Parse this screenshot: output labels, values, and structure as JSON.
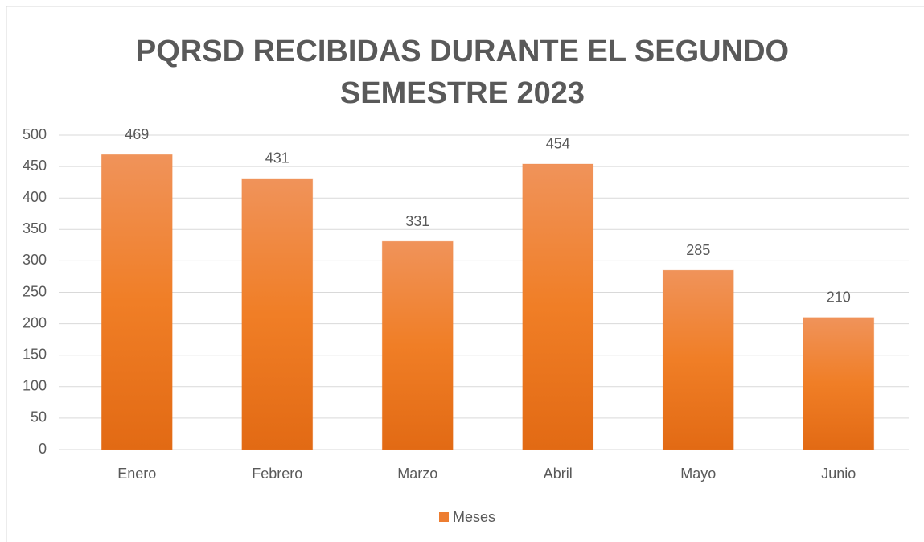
{
  "chart_data": {
    "type": "bar",
    "title": "PQRSD RECIBIDAS DURANTE EL SEGUNDO SEMESTRE 2023",
    "categories": [
      "Enero",
      "Febrero",
      "Marzo",
      "Abril",
      "Mayo",
      "Junio"
    ],
    "series": [
      {
        "name": "Meses",
        "color": "#ed7d31",
        "values": [
          469,
          431,
          331,
          454,
          285,
          210
        ]
      }
    ],
    "ylim": [
      0,
      500
    ],
    "yticks": [
      0,
      50,
      100,
      150,
      200,
      250,
      300,
      350,
      400,
      450,
      500
    ],
    "grid": true,
    "legend": "bottom"
  }
}
